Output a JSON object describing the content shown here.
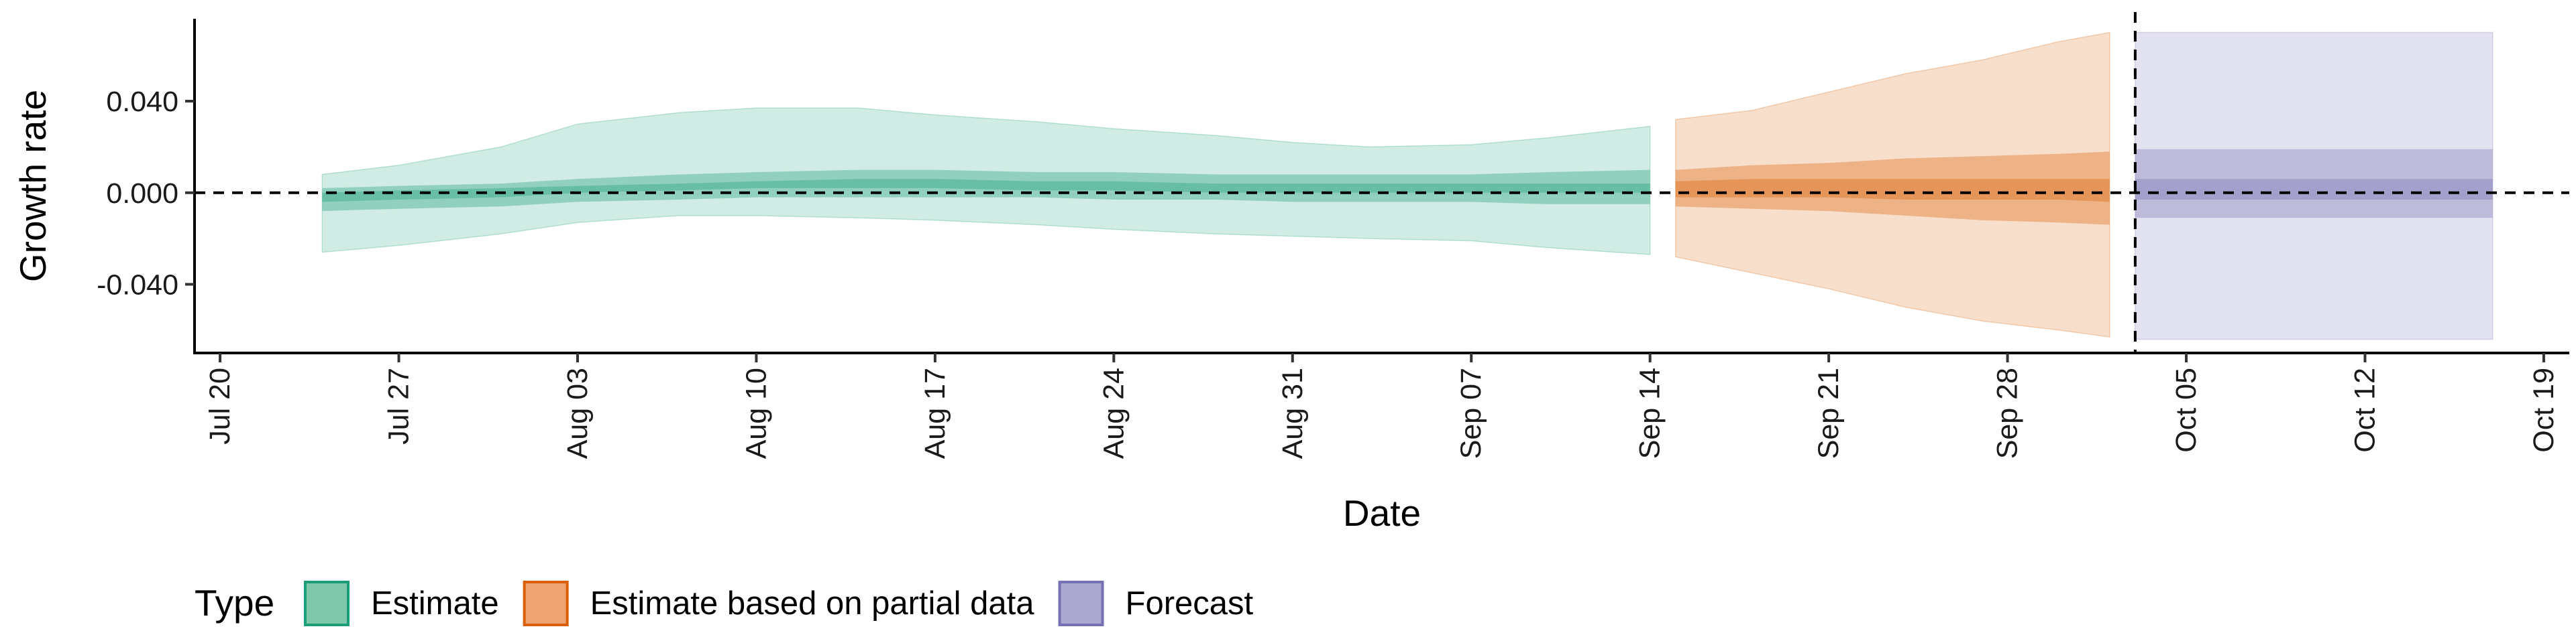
{
  "chart_data": {
    "type": "area",
    "xlabel": "Date",
    "ylabel": "Growth rate",
    "xlim": [
      "2020-07-19",
      "2020-10-20"
    ],
    "ylim": [
      -0.07,
      0.076
    ],
    "x_ticks": [
      "2020-07-20",
      "2020-07-27",
      "2020-08-03",
      "2020-08-10",
      "2020-08-17",
      "2020-08-24",
      "2020-08-31",
      "2020-09-07",
      "2020-09-14",
      "2020-09-21",
      "2020-09-28",
      "2020-10-05",
      "2020-10-12",
      "2020-10-19"
    ],
    "x_tick_labels": [
      "Jul 20",
      "Jul 27",
      "Aug 03",
      "Aug 10",
      "Aug 17",
      "Aug 24",
      "Aug 31",
      "Sep 07",
      "Sep 14",
      "Sep 21",
      "Sep 28",
      "Oct 05",
      "Oct 12",
      "Oct 19"
    ],
    "y_ticks": [
      -0.04,
      0.0,
      0.04
    ],
    "y_tick_labels": [
      "-0.040",
      "0.000",
      "0.040"
    ],
    "hline_y": 0.0,
    "vline_x": "2020-10-03",
    "grid": false,
    "legend": {
      "title": "Type",
      "position": "bottom-left",
      "entries": [
        {
          "label": "Estimate",
          "fill": "#7fc8ab",
          "stroke": "#1b9e77"
        },
        {
          "label": "Estimate based on partial data",
          "fill": "#eea472",
          "stroke": "#d95f02"
        },
        {
          "label": "Forecast",
          "fill": "#aaa8d0",
          "stroke": "#7570b3"
        }
      ]
    },
    "series": [
      {
        "type_key": "Estimate",
        "color": "#1b9e77",
        "points": [
          {
            "x": "2020-07-24",
            "lo90": -0.026,
            "hi90": 0.008,
            "lo50": -0.008,
            "hi50": 0.002,
            "lo20": -0.004,
            "hi20": 0.0
          },
          {
            "x": "2020-07-27",
            "lo90": -0.023,
            "hi90": 0.012,
            "lo50": -0.007,
            "hi50": 0.003,
            "lo20": -0.003,
            "hi20": 0.001
          },
          {
            "x": "2020-07-31",
            "lo90": -0.018,
            "hi90": 0.02,
            "lo50": -0.006,
            "hi50": 0.004,
            "lo20": -0.002,
            "hi20": 0.002
          },
          {
            "x": "2020-08-03",
            "lo90": -0.013,
            "hi90": 0.03,
            "lo50": -0.004,
            "hi50": 0.006,
            "lo20": 0.0,
            "hi20": 0.003
          },
          {
            "x": "2020-08-07",
            "lo90": -0.01,
            "hi90": 0.035,
            "lo50": -0.003,
            "hi50": 0.008,
            "lo20": 0.001,
            "hi20": 0.004
          },
          {
            "x": "2020-08-10",
            "lo90": -0.01,
            "hi90": 0.037,
            "lo50": -0.002,
            "hi50": 0.009,
            "lo20": 0.002,
            "hi20": 0.005
          },
          {
            "x": "2020-08-14",
            "lo90": -0.011,
            "hi90": 0.037,
            "lo50": -0.002,
            "hi50": 0.01,
            "lo20": 0.002,
            "hi20": 0.006
          },
          {
            "x": "2020-08-17",
            "lo90": -0.012,
            "hi90": 0.034,
            "lo50": -0.002,
            "hi50": 0.01,
            "lo20": 0.002,
            "hi20": 0.006
          },
          {
            "x": "2020-08-21",
            "lo90": -0.014,
            "hi90": 0.031,
            "lo50": -0.002,
            "hi50": 0.009,
            "lo20": 0.001,
            "hi20": 0.005
          },
          {
            "x": "2020-08-24",
            "lo90": -0.016,
            "hi90": 0.028,
            "lo50": -0.003,
            "hi50": 0.009,
            "lo20": 0.001,
            "hi20": 0.005
          },
          {
            "x": "2020-08-28",
            "lo90": -0.018,
            "hi90": 0.025,
            "lo50": -0.003,
            "hi50": 0.008,
            "lo20": 0.0,
            "hi20": 0.004
          },
          {
            "x": "2020-08-31",
            "lo90": -0.019,
            "hi90": 0.022,
            "lo50": -0.004,
            "hi50": 0.008,
            "lo20": 0.0,
            "hi20": 0.004
          },
          {
            "x": "2020-09-03",
            "lo90": -0.02,
            "hi90": 0.02,
            "lo50": -0.004,
            "hi50": 0.008,
            "lo20": 0.0,
            "hi20": 0.004
          },
          {
            "x": "2020-09-07",
            "lo90": -0.021,
            "hi90": 0.021,
            "lo50": -0.004,
            "hi50": 0.008,
            "lo20": 0.0,
            "hi20": 0.004
          },
          {
            "x": "2020-09-10",
            "lo90": -0.024,
            "hi90": 0.024,
            "lo50": -0.005,
            "hi50": 0.009,
            "lo20": 0.0,
            "hi20": 0.004
          },
          {
            "x": "2020-09-14",
            "lo90": -0.027,
            "hi90": 0.029,
            "lo50": -0.005,
            "hi50": 0.01,
            "lo20": 0.0,
            "hi20": 0.004
          }
        ]
      },
      {
        "type_key": "Estimate based on partial data",
        "color": "#d95f02",
        "points": [
          {
            "x": "2020-09-15",
            "lo90": -0.028,
            "hi90": 0.032,
            "lo50": -0.006,
            "hi50": 0.01,
            "lo20": -0.002,
            "hi20": 0.005
          },
          {
            "x": "2020-09-18",
            "lo90": -0.035,
            "hi90": 0.036,
            "lo50": -0.007,
            "hi50": 0.012,
            "lo20": -0.002,
            "hi20": 0.006
          },
          {
            "x": "2020-09-21",
            "lo90": -0.042,
            "hi90": 0.044,
            "lo50": -0.008,
            "hi50": 0.013,
            "lo20": -0.002,
            "hi20": 0.006
          },
          {
            "x": "2020-09-24",
            "lo90": -0.05,
            "hi90": 0.052,
            "lo50": -0.01,
            "hi50": 0.015,
            "lo20": -0.003,
            "hi20": 0.006
          },
          {
            "x": "2020-09-27",
            "lo90": -0.056,
            "hi90": 0.058,
            "lo50": -0.012,
            "hi50": 0.016,
            "lo20": -0.003,
            "hi20": 0.006
          },
          {
            "x": "2020-09-30",
            "lo90": -0.06,
            "hi90": 0.066,
            "lo50": -0.013,
            "hi50": 0.017,
            "lo20": -0.003,
            "hi20": 0.006
          },
          {
            "x": "2020-10-02",
            "lo90": -0.063,
            "hi90": 0.07,
            "lo50": -0.014,
            "hi50": 0.018,
            "lo20": -0.004,
            "hi20": 0.006
          }
        ]
      },
      {
        "type_key": "Forecast",
        "color": "#7570b3",
        "points": [
          {
            "x": "2020-10-03",
            "lo90": -0.064,
            "hi90": 0.07,
            "lo50": -0.011,
            "hi50": 0.019,
            "lo20": -0.003,
            "hi20": 0.006
          },
          {
            "x": "2020-10-17",
            "lo90": -0.064,
            "hi90": 0.07,
            "lo50": -0.011,
            "hi50": 0.019,
            "lo20": -0.003,
            "hi20": 0.006
          }
        ]
      }
    ]
  }
}
